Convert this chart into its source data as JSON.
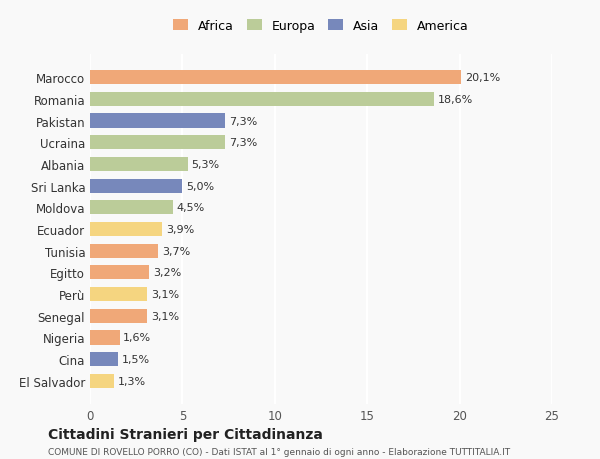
{
  "categories": [
    "Marocco",
    "Romania",
    "Pakistan",
    "Ucraina",
    "Albania",
    "Sri Lanka",
    "Moldova",
    "Ecuador",
    "Tunisia",
    "Egitto",
    "Perù",
    "Senegal",
    "Nigeria",
    "Cina",
    "El Salvador"
  ],
  "values": [
    20.1,
    18.6,
    7.3,
    7.3,
    5.3,
    5.0,
    4.5,
    3.9,
    3.7,
    3.2,
    3.1,
    3.1,
    1.6,
    1.5,
    1.3
  ],
  "labels": [
    "20,1%",
    "18,6%",
    "7,3%",
    "7,3%",
    "5,3%",
    "5,0%",
    "4,5%",
    "3,9%",
    "3,7%",
    "3,2%",
    "3,1%",
    "3,1%",
    "1,6%",
    "1,5%",
    "1,3%"
  ],
  "continents": [
    "Africa",
    "Europa",
    "Asia",
    "Europa",
    "Europa",
    "Asia",
    "Europa",
    "America",
    "Africa",
    "Africa",
    "America",
    "Africa",
    "Africa",
    "Asia",
    "America"
  ],
  "colors": {
    "Africa": "#F0A878",
    "Europa": "#BBCC99",
    "Asia": "#7788BB",
    "America": "#F5D580"
  },
  "legend_order": [
    "Africa",
    "Europa",
    "Asia",
    "America"
  ],
  "xlim": [
    0,
    25
  ],
  "xticks": [
    0,
    5,
    10,
    15,
    20,
    25
  ],
  "title": "Cittadini Stranieri per Cittadinanza",
  "subtitle": "COMUNE DI ROVELLO PORRO (CO) - Dati ISTAT al 1° gennaio di ogni anno - Elaborazione TUTTITALIA.IT",
  "bg_color": "#f9f9f9",
  "grid_color": "#ffffff",
  "bar_height": 0.65
}
